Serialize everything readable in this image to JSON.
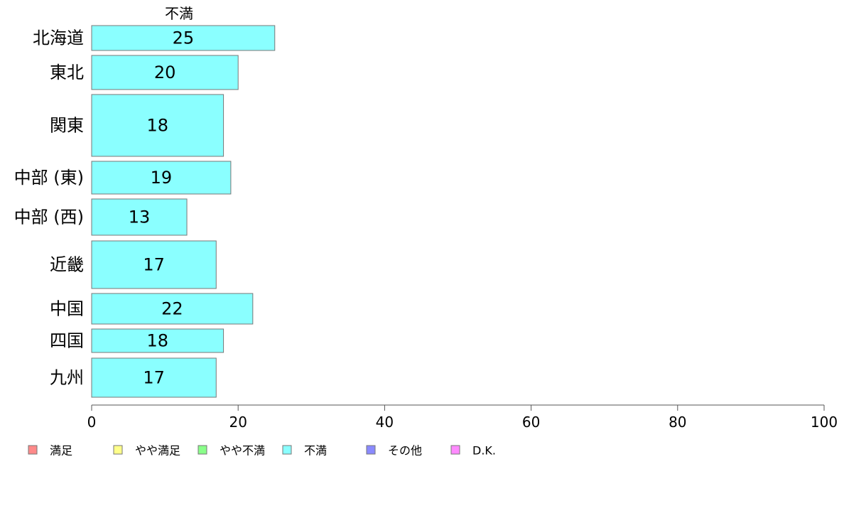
{
  "chart_data": {
    "type": "bar",
    "orientation": "horizontal",
    "title": "不満",
    "categories": [
      "北海道",
      "東北",
      "関東",
      "中部 (東)",
      "中部 (西)",
      "近畿",
      "中国",
      "四国",
      "九州"
    ],
    "series": [
      {
        "name": "不満",
        "color": "#8affff",
        "values": [
          25,
          20,
          18,
          19,
          13,
          17,
          22,
          18,
          17
        ]
      }
    ],
    "xlim": [
      0,
      100
    ],
    "xticks": [
      0,
      20,
      40,
      60,
      80,
      100
    ],
    "grid": false,
    "legend": {
      "placement": "bottom",
      "items": [
        {
          "label": "満足",
          "color": "#ff8a8a"
        },
        {
          "label": "やや満足",
          "color": "#ffff8a"
        },
        {
          "label": "やや不満",
          "color": "#8aff8a"
        },
        {
          "label": "不満",
          "color": "#8affff"
        },
        {
          "label": "その他",
          "color": "#8a8aff"
        },
        {
          "label": "D.K.",
          "color": "#ff8aff"
        }
      ]
    }
  }
}
